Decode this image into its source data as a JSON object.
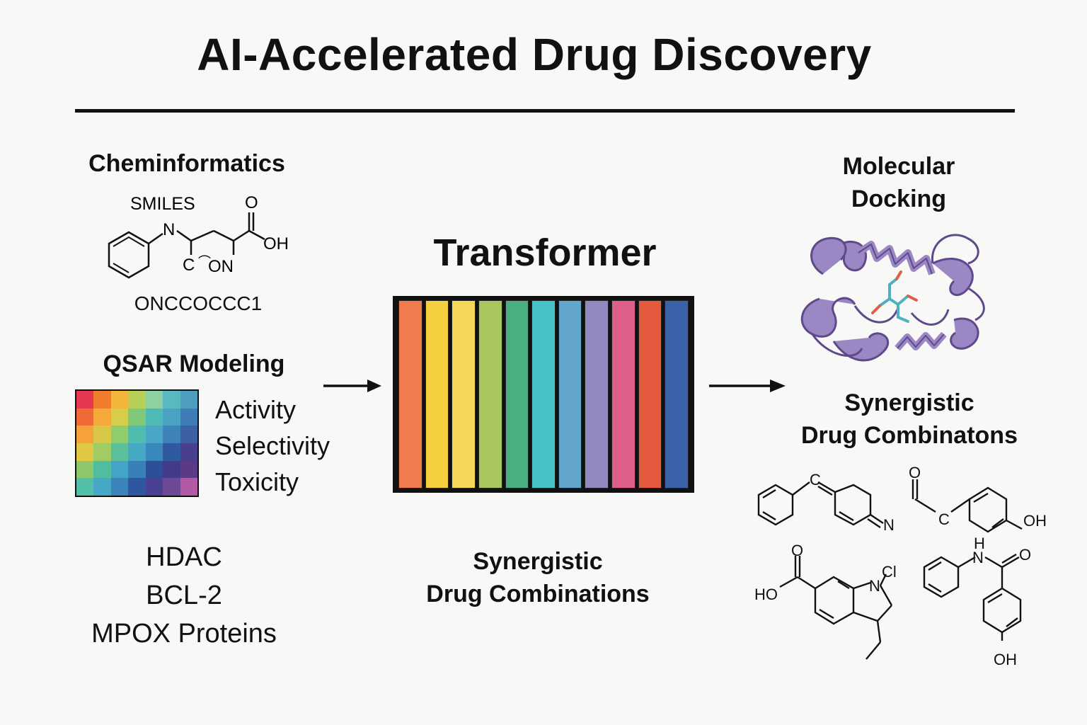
{
  "title": "AI-Accelerated Drug Discovery",
  "cheminformatics": {
    "heading": "Cheminformatics",
    "smiles_label": "SMILES",
    "smiles_string": "ONCCOCCC1",
    "atoms": {
      "n": "N",
      "o": "O",
      "oh": "OH",
      "c": "C",
      "on": "ON"
    }
  },
  "qsar": {
    "heading": "QSAR Modeling",
    "properties": [
      "Activity",
      "Selectivity",
      "Toxicity"
    ],
    "heatmap_colors": [
      "#e8384f",
      "#f07c2e",
      "#f4b63a",
      "#b8cf55",
      "#8fd0a0",
      "#5ab8c0",
      "#4e9fbf",
      "#f06a35",
      "#f5a93a",
      "#d6cd4a",
      "#7fc877",
      "#4fb9b8",
      "#4aa3c4",
      "#3f7db8",
      "#f5a23a",
      "#d9c848",
      "#8fcd6c",
      "#4fbcad",
      "#49a6c4",
      "#3e83ba",
      "#3d5fa6",
      "#e0c845",
      "#9fcc63",
      "#5cbf9c",
      "#46a9c3",
      "#3a87bc",
      "#2f5aa0",
      "#4a3f8f",
      "#8dc96a",
      "#52bd9e",
      "#44a3c6",
      "#3a80b8",
      "#2d4f98",
      "#433a8a",
      "#5b3a86",
      "#52c0a8",
      "#47a8c6",
      "#3b84ba",
      "#2f56a0",
      "#4a4196",
      "#6e4a96",
      "#b25aa3"
    ]
  },
  "targets": [
    "HDAC",
    "BCL-2",
    "MPOX Proteins"
  ],
  "transformer": {
    "heading": "Transformer",
    "bar_colors": [
      "#f07c4e",
      "#f4cf3f",
      "#f5d75a",
      "#a8c85f",
      "#4aae7f",
      "#46c2c8",
      "#62a7cb",
      "#9188c0",
      "#de5f8b",
      "#e55a3e",
      "#3a62a8"
    ],
    "caption_line1": "Synergistic",
    "caption_line2": "Drug Combinations"
  },
  "docking": {
    "heading_line1": "Molecular",
    "heading_line2": "Docking",
    "protein_color": "#9b87c4"
  },
  "synergy_right": {
    "heading_line1": "Synergistic",
    "heading_line2": "Drug Combinatons",
    "atoms": {
      "n": "N",
      "c": "C",
      "o": "O",
      "oh": "OH",
      "ho": "HO",
      "cl": "Cl",
      "h": "H"
    }
  }
}
